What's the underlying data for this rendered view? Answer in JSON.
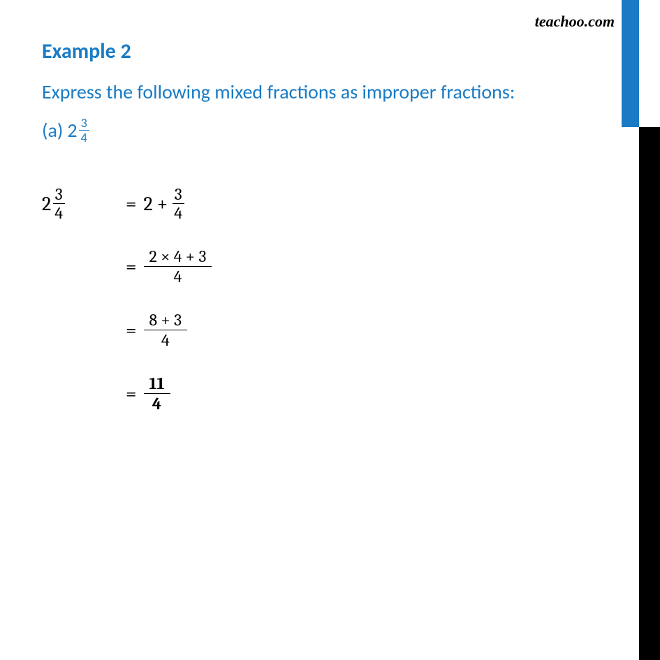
{
  "watermark": "teachoo.com",
  "title": "Example 2",
  "question": "Express the following mixed fractions as improper fractions:",
  "part_label": "(a)",
  "mixed": {
    "whole": "2",
    "num": "3",
    "den": "4"
  },
  "step1": {
    "lhs_whole": "2",
    "lhs_num": "3",
    "lhs_den": "4",
    "rhs_a": "2",
    "rhs_num": "3",
    "rhs_den": "4",
    "plus": "+"
  },
  "step2": {
    "num": "2 × 4 +  3",
    "den": "4"
  },
  "step3": {
    "num": "8 + 3",
    "den": "4"
  },
  "step4": {
    "num": "11",
    "den": "4"
  },
  "equals": "="
}
